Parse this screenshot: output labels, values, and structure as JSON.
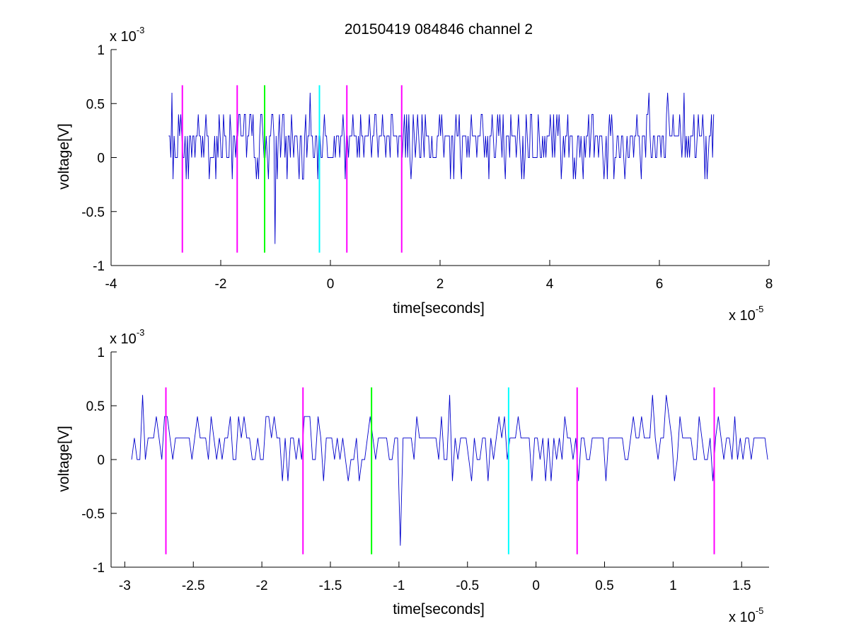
{
  "figure": {
    "title": "20150419 084846 channel 2"
  },
  "colors": {
    "signal": "#0000cc",
    "marker_magenta": "#ff00ff",
    "marker_green": "#00ff00",
    "marker_cyan": "#00ffff",
    "axes": "#000000"
  },
  "chart_data": [
    {
      "type": "line",
      "xlabel": "time[seconds]",
      "ylabel": "voltage[V]",
      "x_multiplier": "x 10",
      "x_exponent": "-5",
      "y_multiplier": "x 10",
      "y_exponent": "-3",
      "xlim": [
        -4,
        8
      ],
      "ylim": [
        -1,
        1
      ],
      "x_ticks": [
        -4,
        -2,
        0,
        2,
        4,
        6,
        8
      ],
      "y_ticks": [
        -1,
        -0.5,
        0,
        0.5,
        1
      ],
      "x_tick_labels": [
        "-4",
        "-2",
        "0",
        "2",
        "4",
        "6",
        "8"
      ],
      "y_tick_labels": [
        "-1",
        "-0.5",
        "0",
        "0.5",
        "1"
      ],
      "grid": false,
      "signal": {
        "x_start": -2.95,
        "x_end": 7.0,
        "sample_step": 0.02,
        "levels": [
          -0.2,
          0,
          0.2,
          0.4,
          0.6
        ],
        "dips": [
          {
            "x": -1.0,
            "y": -0.8
          }
        ],
        "peaks": [
          {
            "x": -2.9,
            "y": 0.6
          },
          {
            "x": 6.45,
            "y": 0.6
          }
        ]
      },
      "markers": [
        {
          "x": -2.7,
          "color": "magenta",
          "y_range": [
            -0.88,
            0.67
          ]
        },
        {
          "x": -1.7,
          "color": "magenta",
          "y_range": [
            -0.88,
            0.67
          ]
        },
        {
          "x": -1.2,
          "color": "green",
          "y_range": [
            -0.88,
            0.67
          ]
        },
        {
          "x": -0.2,
          "color": "cyan",
          "y_range": [
            -0.88,
            0.67
          ]
        },
        {
          "x": 0.3,
          "color": "magenta",
          "y_range": [
            -0.88,
            0.67
          ]
        },
        {
          "x": 1.3,
          "color": "magenta",
          "y_range": [
            -0.88,
            0.67
          ]
        }
      ]
    },
    {
      "type": "line",
      "xlabel": "time[seconds]",
      "ylabel": "voltage[V]",
      "x_multiplier": "x 10",
      "x_exponent": "-5",
      "y_multiplier": "x 10",
      "y_exponent": "-3",
      "xlim": [
        -3.1,
        1.7
      ],
      "ylim": [
        -1,
        1
      ],
      "x_ticks": [
        -3,
        -2.5,
        -2,
        -1.5,
        -1,
        -0.5,
        0,
        0.5,
        1,
        1.5
      ],
      "y_ticks": [
        -1,
        -0.5,
        0,
        0.5,
        1
      ],
      "x_tick_labels": [
        "-3",
        "-2.5",
        "-2",
        "-1.5",
        "-1",
        "-0.5",
        "0",
        "0.5",
        "1",
        "1.5"
      ],
      "y_tick_labels": [
        "-1",
        "-0.5",
        "0",
        "0.5",
        "1"
      ],
      "grid": false,
      "signal": {
        "x_start": -2.95,
        "x_end": 1.7,
        "sample_step": 0.02,
        "levels": [
          -0.2,
          0,
          0.2,
          0.4,
          0.6
        ],
        "dips": [
          {
            "x": -0.98,
            "y": -0.8
          }
        ],
        "peaks": [
          {
            "x": -2.88,
            "y": 0.6
          },
          {
            "x": -0.63,
            "y": 0.6
          }
        ]
      },
      "markers": [
        {
          "x": -2.7,
          "color": "magenta",
          "y_range": [
            -0.88,
            0.67
          ]
        },
        {
          "x": -1.7,
          "color": "magenta",
          "y_range": [
            -0.88,
            0.67
          ]
        },
        {
          "x": -1.2,
          "color": "green",
          "y_range": [
            -0.88,
            0.67
          ]
        },
        {
          "x": -0.2,
          "color": "cyan",
          "y_range": [
            -0.88,
            0.67
          ]
        },
        {
          "x": 0.3,
          "color": "magenta",
          "y_range": [
            -0.88,
            0.67
          ]
        },
        {
          "x": 1.3,
          "color": "magenta",
          "y_range": [
            -0.88,
            0.67
          ]
        }
      ]
    }
  ]
}
